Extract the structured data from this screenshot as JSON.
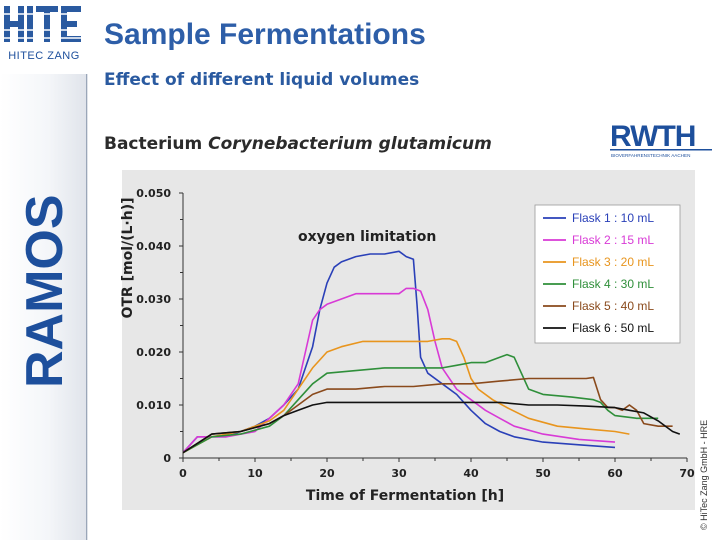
{
  "branding": {
    "company_logo_text": "HITEC ZANG",
    "product_logo_text": "RAMOS",
    "university_logo_text": "RWTH",
    "university_logo_subtext": "BIOVERFAHRENSTECHNIK AACHEN",
    "accent_color": "#2d5ea8"
  },
  "slide": {
    "title": "Sample Fermentations",
    "subtitle": "Effect of different liquid volumes",
    "organism_prefix": "Bacterium ",
    "organism_name": "Corynebacterium glutamicum",
    "copyright": "© HiTec Zang GmbH - HRE"
  },
  "chart_data": {
    "type": "line",
    "title": "",
    "xlabel": "Time of Fermentation [h]",
    "ylabel": "OTR [mol/(L·h)]",
    "xlim": [
      0,
      70
    ],
    "ylim": [
      0,
      0.05
    ],
    "x_ticks": [
      "0",
      "10",
      "20",
      "30",
      "40",
      "50",
      "60",
      "70"
    ],
    "y_ticks": [
      "0",
      "0.010",
      "0.020",
      "0.030",
      "0.040",
      "0.050"
    ],
    "grid": false,
    "legend_position": "top-right",
    "annotation": "oxygen limitation",
    "series": [
      {
        "name": "Flask 1 : 10 mL",
        "color": "#2a40b8",
        "points": [
          [
            0,
            0.001
          ],
          [
            2,
            0.004
          ],
          [
            4,
            0.004
          ],
          [
            6,
            0.004
          ],
          [
            8,
            0.005
          ],
          [
            10,
            0.006
          ],
          [
            12,
            0.0075
          ],
          [
            14,
            0.01
          ],
          [
            16,
            0.013
          ],
          [
            17,
            0.017
          ],
          [
            18,
            0.021
          ],
          [
            19,
            0.028
          ],
          [
            20,
            0.033
          ],
          [
            21,
            0.036
          ],
          [
            22,
            0.037
          ],
          [
            24,
            0.038
          ],
          [
            26,
            0.0385
          ],
          [
            28,
            0.0385
          ],
          [
            30,
            0.039
          ],
          [
            31,
            0.038
          ],
          [
            32,
            0.0375
          ],
          [
            32.5,
            0.029
          ],
          [
            33,
            0.019
          ],
          [
            34,
            0.016
          ],
          [
            36,
            0.014
          ],
          [
            38,
            0.012
          ],
          [
            40,
            0.009
          ],
          [
            42,
            0.0065
          ],
          [
            44,
            0.005
          ],
          [
            46,
            0.004
          ],
          [
            50,
            0.003
          ],
          [
            55,
            0.0025
          ],
          [
            60,
            0.002
          ]
        ]
      },
      {
        "name": "Flask 2 : 15 mL",
        "color": "#d83ad6",
        "points": [
          [
            0,
            0.001
          ],
          [
            2,
            0.004
          ],
          [
            6,
            0.004
          ],
          [
            10,
            0.005
          ],
          [
            14,
            0.01
          ],
          [
            16,
            0.014
          ],
          [
            17,
            0.02
          ],
          [
            18,
            0.026
          ],
          [
            19,
            0.028
          ],
          [
            20,
            0.029
          ],
          [
            22,
            0.03
          ],
          [
            24,
            0.031
          ],
          [
            26,
            0.031
          ],
          [
            28,
            0.031
          ],
          [
            30,
            0.031
          ],
          [
            31,
            0.032
          ],
          [
            32,
            0.032
          ],
          [
            33,
            0.0315
          ],
          [
            34,
            0.028
          ],
          [
            35,
            0.022
          ],
          [
            36,
            0.017
          ],
          [
            38,
            0.013
          ],
          [
            40,
            0.011
          ],
          [
            42,
            0.009
          ],
          [
            44,
            0.0075
          ],
          [
            46,
            0.006
          ],
          [
            50,
            0.0045
          ],
          [
            55,
            0.0035
          ],
          [
            60,
            0.003
          ]
        ]
      },
      {
        "name": "Flask 3 : 20 mL",
        "color": "#e8951e",
        "points": [
          [
            0,
            0.001
          ],
          [
            4,
            0.004
          ],
          [
            8,
            0.005
          ],
          [
            12,
            0.007
          ],
          [
            14,
            0.009
          ],
          [
            16,
            0.013
          ],
          [
            18,
            0.017
          ],
          [
            20,
            0.02
          ],
          [
            22,
            0.021
          ],
          [
            25,
            0.022
          ],
          [
            28,
            0.022
          ],
          [
            31,
            0.022
          ],
          [
            34,
            0.022
          ],
          [
            36,
            0.0225
          ],
          [
            37,
            0.0225
          ],
          [
            38,
            0.022
          ],
          [
            39,
            0.019
          ],
          [
            40,
            0.015
          ],
          [
            41,
            0.013
          ],
          [
            43,
            0.011
          ],
          [
            45,
            0.0095
          ],
          [
            48,
            0.0075
          ],
          [
            52,
            0.006
          ],
          [
            56,
            0.0055
          ],
          [
            60,
            0.005
          ],
          [
            62,
            0.0045
          ]
        ]
      },
      {
        "name": "Flask 4 : 30 mL",
        "color": "#2f8f3a",
        "points": [
          [
            0,
            0.001
          ],
          [
            4,
            0.004
          ],
          [
            8,
            0.0045
          ],
          [
            12,
            0.006
          ],
          [
            14,
            0.008
          ],
          [
            16,
            0.011
          ],
          [
            18,
            0.014
          ],
          [
            20,
            0.016
          ],
          [
            24,
            0.0165
          ],
          [
            28,
            0.017
          ],
          [
            32,
            0.017
          ],
          [
            36,
            0.017
          ],
          [
            38,
            0.0175
          ],
          [
            40,
            0.018
          ],
          [
            42,
            0.018
          ],
          [
            44,
            0.019
          ],
          [
            45,
            0.0195
          ],
          [
            46,
            0.019
          ],
          [
            47,
            0.016
          ],
          [
            48,
            0.013
          ],
          [
            50,
            0.012
          ],
          [
            54,
            0.0115
          ],
          [
            57,
            0.011
          ],
          [
            58,
            0.0105
          ],
          [
            59,
            0.009
          ],
          [
            60,
            0.008
          ],
          [
            63,
            0.0075
          ],
          [
            66,
            0.0075
          ]
        ]
      },
      {
        "name": "Flask 5 : 40 mL",
        "color": "#8a4a1c",
        "points": [
          [
            0,
            0.001
          ],
          [
            4,
            0.0045
          ],
          [
            8,
            0.005
          ],
          [
            12,
            0.0065
          ],
          [
            14,
            0.008
          ],
          [
            16,
            0.01
          ],
          [
            18,
            0.012
          ],
          [
            20,
            0.013
          ],
          [
            24,
            0.013
          ],
          [
            28,
            0.0135
          ],
          [
            32,
            0.0135
          ],
          [
            36,
            0.014
          ],
          [
            40,
            0.014
          ],
          [
            44,
            0.0145
          ],
          [
            48,
            0.015
          ],
          [
            52,
            0.015
          ],
          [
            56,
            0.015
          ],
          [
            57,
            0.0152
          ],
          [
            58,
            0.011
          ],
          [
            59,
            0.0095
          ],
          [
            60,
            0.0095
          ],
          [
            61,
            0.009
          ],
          [
            62,
            0.01
          ],
          [
            63,
            0.009
          ],
          [
            64,
            0.0065
          ],
          [
            66,
            0.006
          ],
          [
            68,
            0.006
          ]
        ]
      },
      {
        "name": "Flask 6 : 50 mL",
        "color": "#111111",
        "points": [
          [
            0,
            0.001
          ],
          [
            4,
            0.0045
          ],
          [
            8,
            0.005
          ],
          [
            12,
            0.0065
          ],
          [
            14,
            0.008
          ],
          [
            16,
            0.009
          ],
          [
            18,
            0.01
          ],
          [
            20,
            0.0105
          ],
          [
            24,
            0.0105
          ],
          [
            28,
            0.0105
          ],
          [
            32,
            0.0105
          ],
          [
            36,
            0.0105
          ],
          [
            40,
            0.0105
          ],
          [
            44,
            0.0105
          ],
          [
            48,
            0.01
          ],
          [
            52,
            0.01
          ],
          [
            56,
            0.0098
          ],
          [
            60,
            0.0095
          ],
          [
            62,
            0.009
          ],
          [
            64,
            0.0085
          ],
          [
            66,
            0.007
          ],
          [
            68,
            0.005
          ],
          [
            69,
            0.0045
          ]
        ]
      }
    ]
  }
}
